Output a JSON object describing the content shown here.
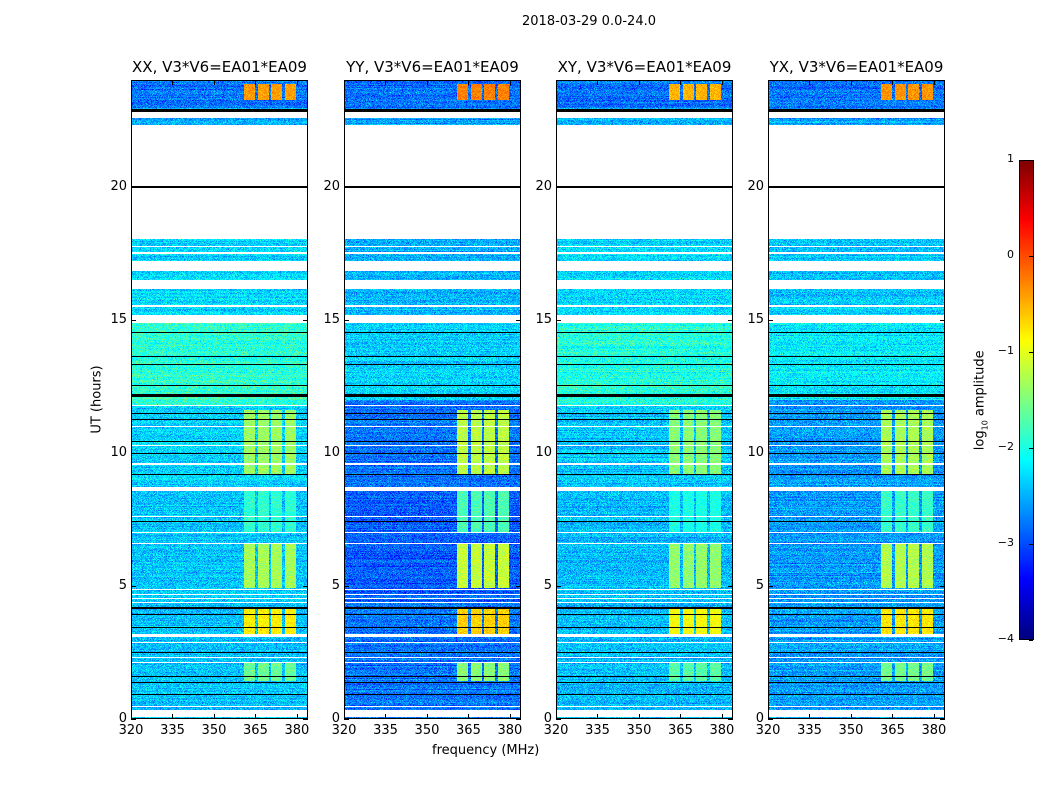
{
  "chart_data": {
    "type": "heatmap",
    "title": "2018-03-29 0.0-24.0",
    "xlabel": "frequency (MHz)",
    "ylabel": "UT (hours)",
    "xlim": [
      320,
      384
    ],
    "ylim": [
      0,
      24
    ],
    "xticks": [
      "320",
      "335",
      "350",
      "365",
      "380"
    ],
    "yticks": [
      "0",
      "5",
      "10",
      "15",
      "20"
    ],
    "colorbar": {
      "label_base": "log",
      "label_sub": "10",
      "label_rest": " amplitude",
      "range": [
        -4,
        1
      ],
      "ticks": [
        "1",
        "0",
        "−1",
        "−2",
        "−3",
        "−4"
      ],
      "colormap": "jet"
    },
    "panels": [
      {
        "title": "XX, V3*V6=EA01*EA09",
        "levels": [
          [
            0,
            8.6,
            -2.4
          ],
          [
            8.6,
            11.8,
            -2.35
          ],
          [
            11.8,
            15,
            -1.9
          ],
          [
            15,
            18.1,
            -2.3
          ],
          [
            22.3,
            23,
            -2.5
          ],
          [
            23,
            24,
            -2.8
          ]
        ],
        "rfi_gain": 0
      },
      {
        "title": "YY, V3*V6=EA01*EA09",
        "levels": [
          [
            0,
            4.3,
            -2.8
          ],
          [
            4.3,
            8.6,
            -2.9
          ],
          [
            8.6,
            12,
            -2.8
          ],
          [
            12,
            15,
            -2.35
          ],
          [
            15,
            18.1,
            -2.5
          ],
          [
            22.3,
            23,
            -2.6
          ],
          [
            23,
            24,
            -2.8
          ]
        ],
        "rfi_gain": 0.15
      },
      {
        "title": "XY, V3*V6=EA01*EA09",
        "levels": [
          [
            0,
            8.6,
            -2.45
          ],
          [
            8.6,
            11.8,
            -2.4
          ],
          [
            11.8,
            15,
            -1.95
          ],
          [
            15,
            18.1,
            -2.3
          ],
          [
            22.3,
            23,
            -2.5
          ],
          [
            23,
            24,
            -2.8
          ]
        ],
        "rfi_gain": -0.1
      },
      {
        "title": "YX, V3*V6=EA01*EA09",
        "levels": [
          [
            0,
            4.3,
            -2.6
          ],
          [
            4.3,
            8.6,
            -2.6
          ],
          [
            8.6,
            12,
            -2.6
          ],
          [
            12,
            15,
            -2.2
          ],
          [
            15,
            18.1,
            -2.4
          ],
          [
            22.3,
            23,
            -2.6
          ],
          [
            23,
            24,
            -2.8
          ]
        ],
        "rfi_gain": 0.05
      }
    ],
    "rfi_bands_mhz": [
      [
        361,
        365
      ],
      [
        366,
        370
      ],
      [
        371,
        375
      ],
      [
        376,
        380
      ]
    ],
    "rfi_events": [
      [
        3.1,
        4.1,
        -0.8
      ],
      [
        4.9,
        6.6,
        -1.3
      ],
      [
        9.2,
        11.6,
        -1.35
      ],
      [
        1.4,
        2.1,
        -1.6
      ],
      [
        7.0,
        8.6,
        -1.9
      ],
      [
        23.3,
        23.9,
        -0.4
      ]
    ],
    "flagged_hours": [
      [
        0.04,
        0.3
      ],
      [
        0.42,
        0.47
      ],
      [
        2.08,
        2.12
      ],
      [
        2.27,
        2.31
      ],
      [
        2.83,
        2.87
      ],
      [
        3.04,
        3.15
      ],
      [
        4.35,
        4.38
      ],
      [
        4.5,
        4.53
      ],
      [
        4.65,
        4.68
      ],
      [
        4.82,
        4.86
      ],
      [
        6.55,
        6.6
      ],
      [
        6.96,
        7.0
      ],
      [
        7.56,
        7.6
      ],
      [
        8.55,
        8.7
      ],
      [
        9.55,
        9.62
      ],
      [
        10.26,
        10.3
      ],
      [
        10.98,
        11.02
      ],
      [
        11.76,
        11.8
      ],
      [
        14.9,
        15.2
      ],
      [
        15.5,
        15.55
      ],
      [
        16.17,
        16.5
      ],
      [
        16.85,
        17.2
      ],
      [
        17.5,
        17.55
      ],
      [
        17.75,
        17.8
      ],
      [
        18.05,
        22.36
      ],
      [
        22.6,
        22.85
      ]
    ],
    "zero_hours": [
      [
        0.88,
        0.92
      ],
      [
        1.33,
        1.37
      ],
      [
        1.56,
        1.6
      ],
      [
        2.46,
        2.5
      ],
      [
        3.39,
        3.43
      ],
      [
        3.88,
        3.92
      ],
      [
        4.09,
        4.2
      ],
      [
        7.37,
        7.41
      ],
      [
        9.17,
        9.21
      ],
      [
        9.96,
        10.0
      ],
      [
        10.41,
        10.45
      ],
      [
        11.24,
        11.28
      ],
      [
        11.46,
        11.5
      ],
      [
        12.1,
        12.22
      ],
      [
        12.5,
        12.53
      ],
      [
        13.3,
        13.33
      ],
      [
        13.6,
        13.63
      ],
      [
        14.15,
        14.18
      ],
      [
        14.5,
        14.53
      ],
      [
        19.97,
        20.03
      ],
      [
        22.85,
        22.95
      ]
    ]
  }
}
